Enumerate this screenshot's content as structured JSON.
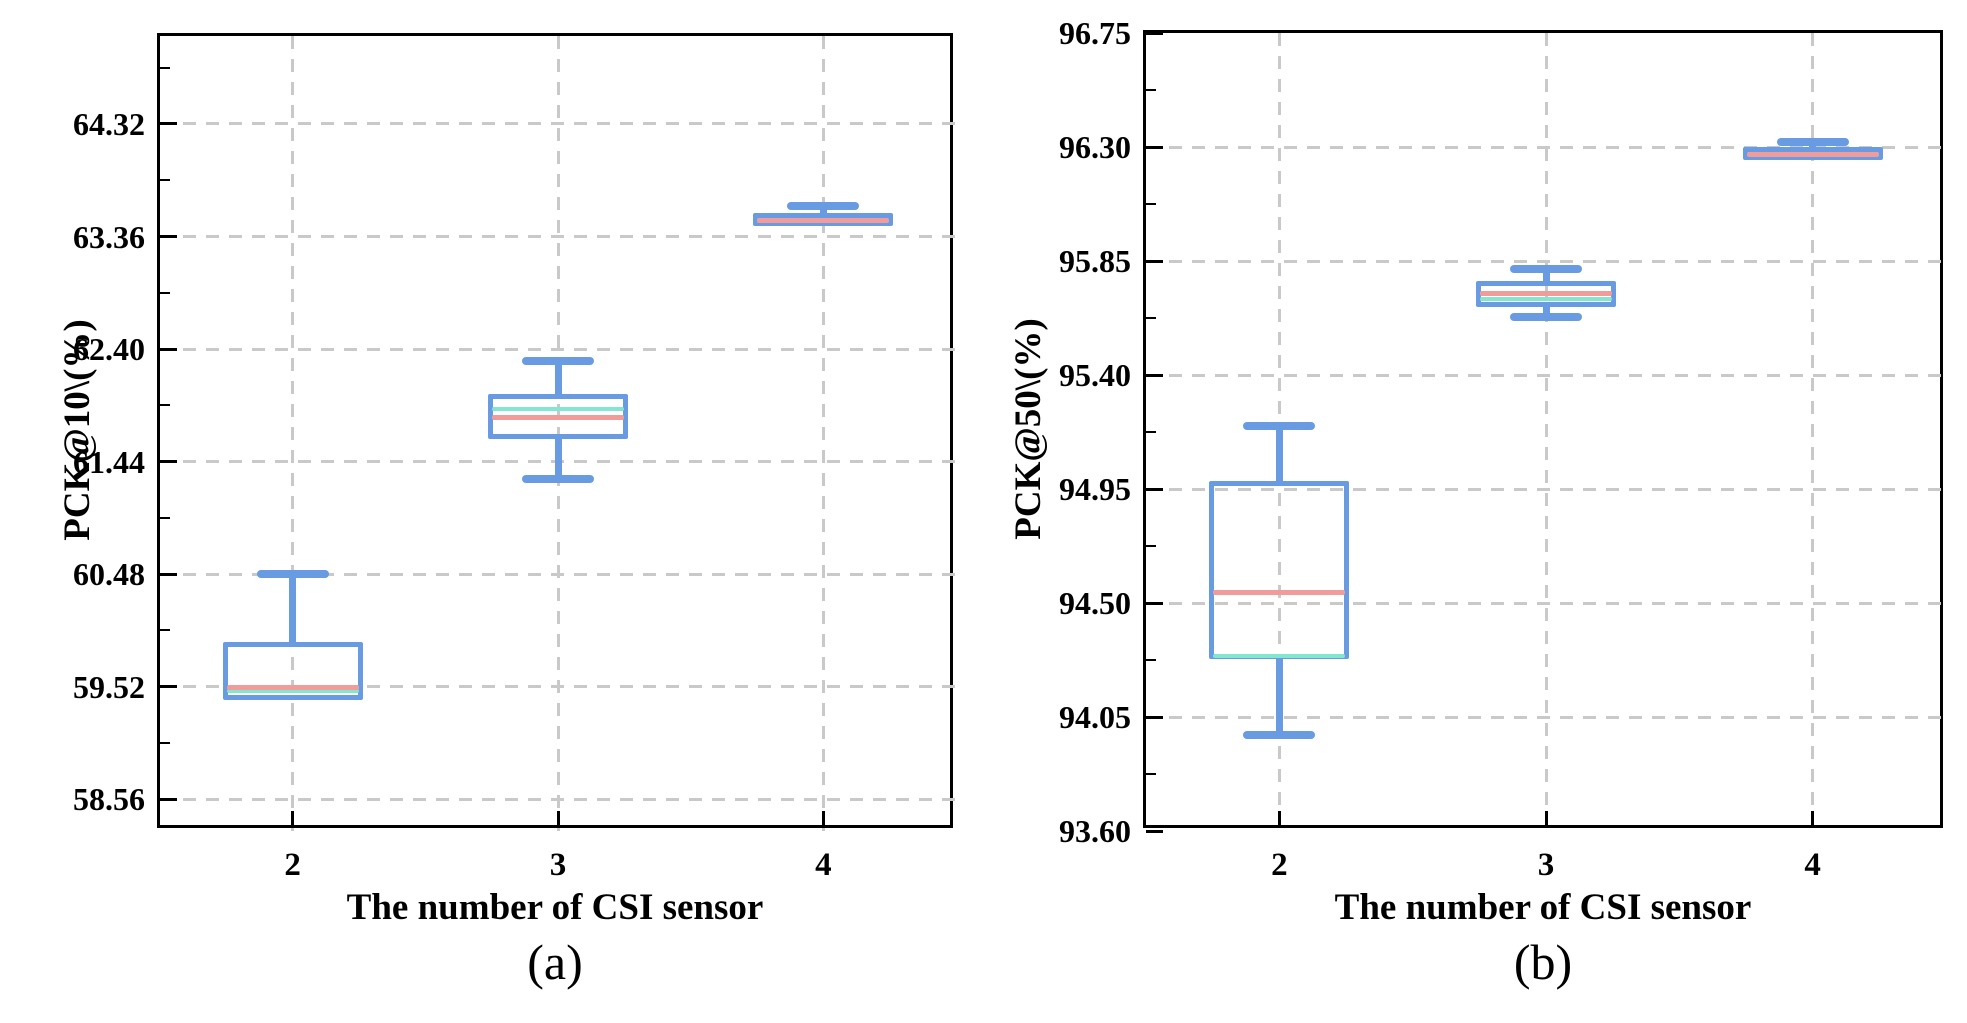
{
  "figure": {
    "background": "#ffffff",
    "description_visible_text_only": true
  },
  "colors": {
    "box_stroke": "#689BE1",
    "median_line": "#F19B9B",
    "mean_line": "#83E6D1",
    "gridline": "#C9C9C9",
    "axis": "#000000",
    "text": "#000000"
  },
  "chart_data": [
    {
      "type": "boxplot",
      "caption": "(a)",
      "xlabel": "The number of CSI sensor",
      "ylabel": "PCK@10\\(%)",
      "categories": [
        "2",
        "3",
        "4"
      ],
      "ylim": [
        58.29,
        65.07
      ],
      "yticks": [
        58.56,
        59.52,
        60.48,
        61.44,
        62.4,
        63.36,
        64.32
      ],
      "ytick_decimals": 2,
      "grid": "dashed, horizontal at y major ticks and vertical at each category",
      "legend": "none",
      "series": [
        {
          "category": "2",
          "whisker_low": null,
          "q1": 59.41,
          "mean": 59.48,
          "median": 59.51,
          "q3": 59.9,
          "whisker_high": 60.48
        },
        {
          "category": "3",
          "whisker_low": 61.29,
          "q1": 61.63,
          "mean": 61.89,
          "median": 61.82,
          "q3": 62.02,
          "whisker_high": 62.3
        },
        {
          "category": "4",
          "whisker_low": null,
          "q1": 63.45,
          "mean": null,
          "median": 63.5,
          "q3": 63.56,
          "whisker_high": 63.62
        }
      ]
    },
    {
      "type": "boxplot",
      "caption": "(b)",
      "xlabel": "The number of CSI sensor",
      "ylabel": "PCK@50\\(%)",
      "categories": [
        "2",
        "3",
        "4"
      ],
      "ylim": [
        93.6,
        96.75
      ],
      "yticks": [
        93.6,
        94.05,
        94.5,
        94.95,
        95.4,
        95.85,
        96.3,
        96.75
      ],
      "ytick_decimals": 2,
      "grid": "dashed, horizontal at y major ticks and vertical at each category",
      "legend": "none",
      "series": [
        {
          "category": "2",
          "whisker_low": 93.98,
          "q1": 94.28,
          "mean": 94.29,
          "median": 94.54,
          "q3": 94.98,
          "whisker_high": 95.2
        },
        {
          "category": "3",
          "whisker_low": 95.63,
          "q1": 95.67,
          "mean": 95.7,
          "median": 95.72,
          "q3": 95.77,
          "whisker_high": 95.82
        },
        {
          "category": "4",
          "whisker_low": null,
          "q1": 96.25,
          "mean": null,
          "median": 96.27,
          "q3": 96.3,
          "whisker_high": 96.32
        }
      ]
    }
  ]
}
